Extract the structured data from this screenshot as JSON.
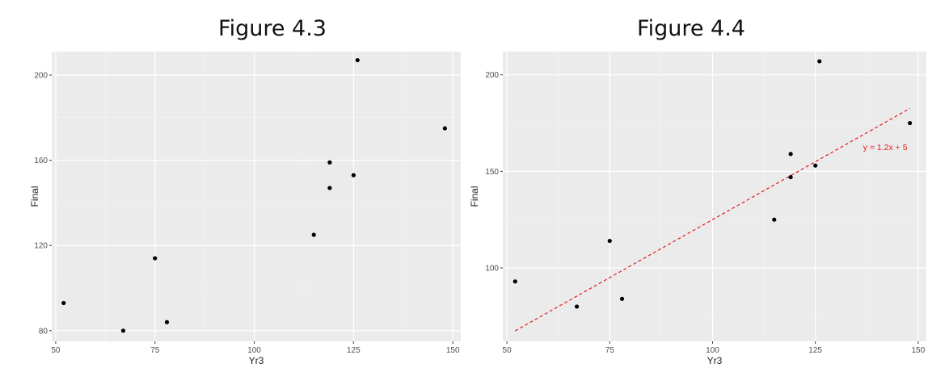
{
  "chart_data": [
    {
      "type": "scatter",
      "title": "Figure 4.3",
      "xlabel": "Yr3",
      "ylabel": "Final",
      "xlim": [
        49,
        152
      ],
      "ylim": [
        75,
        211
      ],
      "xticks": [
        50,
        75,
        100,
        125,
        150
      ],
      "yticks": [
        80,
        120,
        160,
        200
      ],
      "grid": true,
      "points": [
        {
          "x": 52,
          "y": 93
        },
        {
          "x": 67,
          "y": 80
        },
        {
          "x": 75,
          "y": 114
        },
        {
          "x": 78,
          "y": 84
        },
        {
          "x": 115,
          "y": 125
        },
        {
          "x": 119,
          "y": 147
        },
        {
          "x": 119,
          "y": 159
        },
        {
          "x": 125,
          "y": 153
        },
        {
          "x": 126,
          "y": 207
        },
        {
          "x": 148,
          "y": 175
        }
      ]
    },
    {
      "type": "scatter",
      "title": "Figure 4.4",
      "xlabel": "Yr3",
      "ylabel": "Final",
      "xlim": [
        49,
        152
      ],
      "ylim": [
        62,
        212
      ],
      "xticks": [
        50,
        75,
        100,
        125,
        150
      ],
      "yticks": [
        100,
        150,
        200
      ],
      "grid": true,
      "points": [
        {
          "x": 52,
          "y": 93
        },
        {
          "x": 67,
          "y": 80
        },
        {
          "x": 75,
          "y": 114
        },
        {
          "x": 78,
          "y": 84
        },
        {
          "x": 115,
          "y": 125
        },
        {
          "x": 119,
          "y": 147
        },
        {
          "x": 119,
          "y": 159
        },
        {
          "x": 125,
          "y": 153
        },
        {
          "x": 126,
          "y": 207
        },
        {
          "x": 148,
          "y": 175
        }
      ],
      "fit_line": {
        "slope": 1.2,
        "intercept": 5,
        "x_range": [
          52,
          148
        ],
        "color": "#e41a1c",
        "style": "dashed",
        "label": "y = 1.2x + 5"
      }
    }
  ]
}
